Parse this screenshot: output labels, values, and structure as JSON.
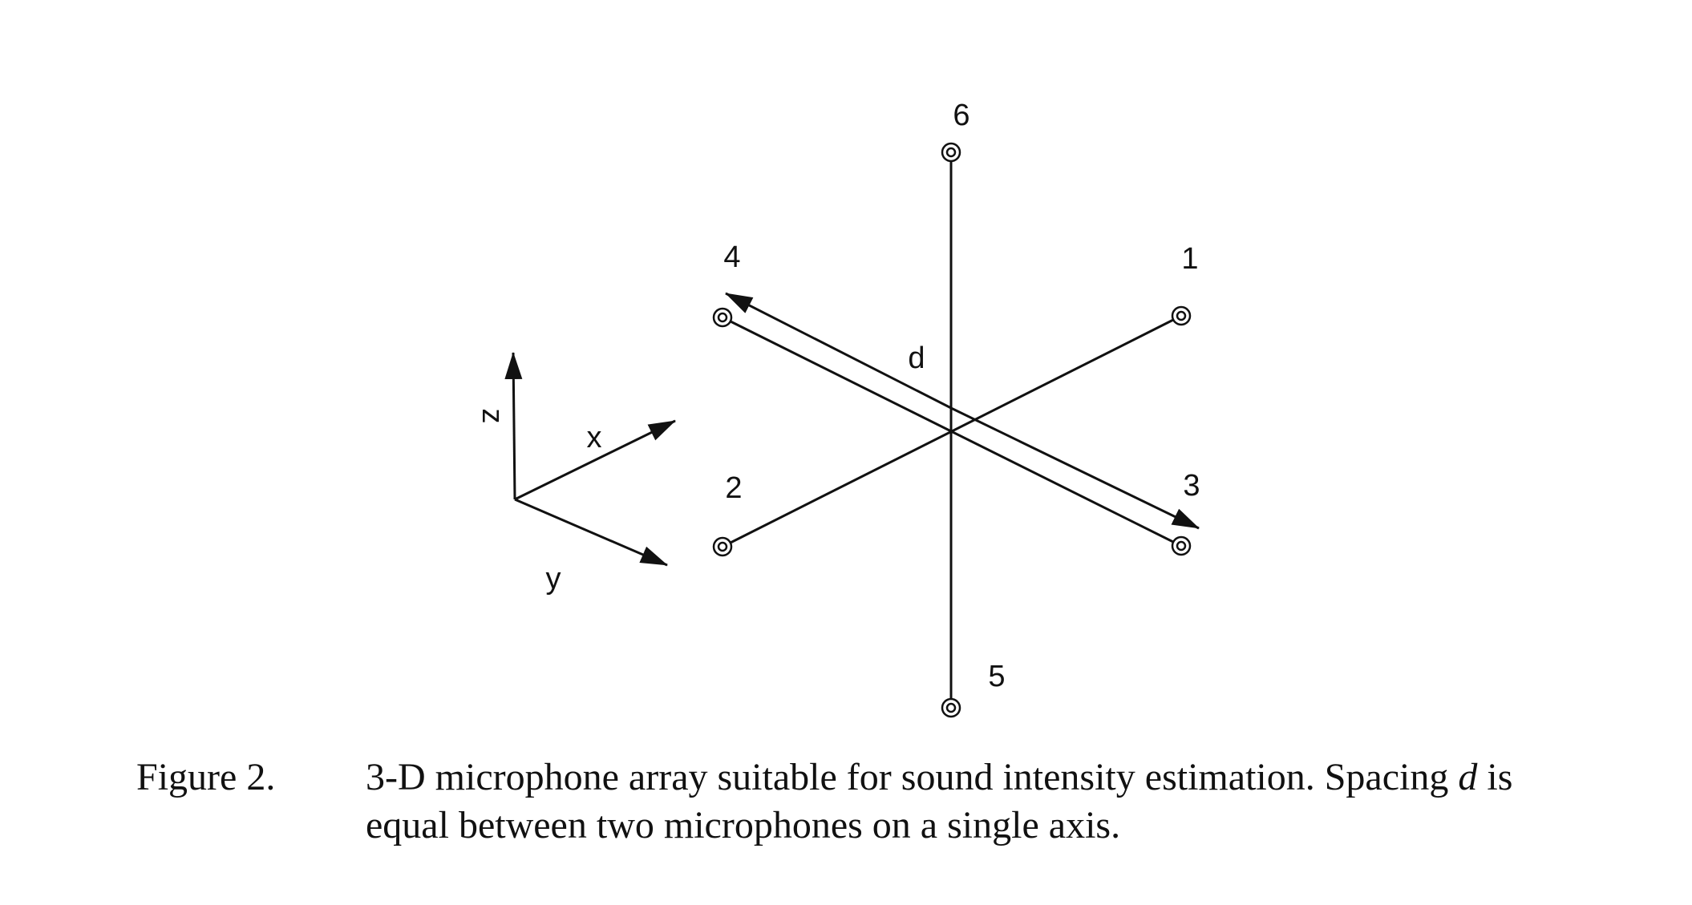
{
  "figure": {
    "axes": {
      "z_label": "z",
      "x_label": "x",
      "y_label": "y"
    },
    "spacing_label": "d",
    "microphones": [
      {
        "id": "mic-1",
        "label": "1"
      },
      {
        "id": "mic-2",
        "label": "2"
      },
      {
        "id": "mic-3",
        "label": "3"
      },
      {
        "id": "mic-4",
        "label": "4"
      },
      {
        "id": "mic-5",
        "label": "5"
      },
      {
        "id": "mic-6",
        "label": "6"
      }
    ]
  },
  "caption": {
    "label": "Figure 2.",
    "text_before": "3-D microphone array suitable for sound intensity estimation. Spacing ",
    "variable": "d",
    "text_after": " is equal between two microphones on a single axis."
  }
}
